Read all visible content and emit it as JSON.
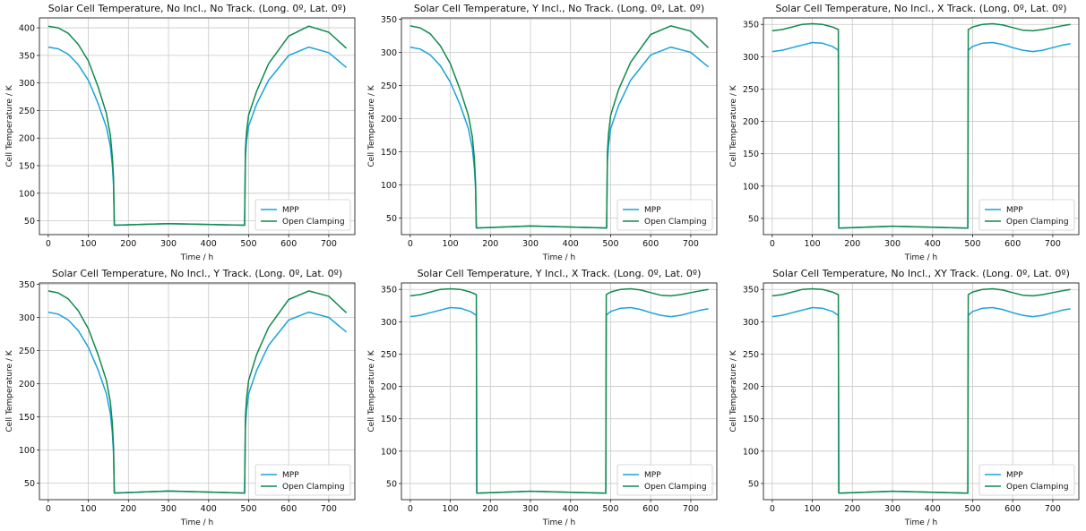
{
  "colors": {
    "mpp": "#1ba3d9",
    "open_clamping": "#108a4c",
    "grid": "#c8c8c8",
    "axes": "#222222"
  },
  "chart_data": [
    {
      "type": "line",
      "title": "Solar Cell Temperature, No Incl., No Track. (Long. 0º, Lat. 0º)",
      "xlabel": "Time / h",
      "ylabel": "Cell Temperature / K",
      "xlim": [
        -22,
        765
      ],
      "ylim": [
        25,
        418
      ],
      "xticks": [
        0,
        100,
        200,
        300,
        400,
        500,
        600,
        700
      ],
      "yticks": [
        50,
        100,
        150,
        200,
        250,
        300,
        350,
        400
      ],
      "grid": true,
      "legend": "bottom-right",
      "series": [
        {
          "name": "MPP",
          "x": [
            0,
            25,
            50,
            75,
            100,
            125,
            145,
            155,
            160,
            163,
            165,
            300,
            490,
            492,
            495,
            500,
            520,
            550,
            600,
            650,
            700,
            744
          ],
          "y": [
            365,
            362,
            352,
            333,
            305,
            262,
            220,
            185,
            150,
            115,
            42,
            45,
            42,
            165,
            195,
            222,
            262,
            305,
            350,
            365,
            355,
            328
          ]
        },
        {
          "name": "Open Clamping",
          "x": [
            0,
            25,
            50,
            75,
            100,
            125,
            145,
            155,
            160,
            163,
            165,
            300,
            490,
            492,
            495,
            500,
            520,
            550,
            600,
            650,
            700,
            744
          ],
          "y": [
            403,
            400,
            390,
            370,
            340,
            292,
            245,
            205,
            165,
            128,
            42,
            45,
            42,
            180,
            212,
            242,
            285,
            335,
            385,
            403,
            392,
            363
          ]
        }
      ]
    },
    {
      "type": "line",
      "title": "Solar Cell Temperature, Y Incl., No Track. (Long. 0º, Lat. 0º)",
      "xlabel": "Time / h",
      "ylabel": "Cell Temperature / K",
      "xlim": [
        -22,
        765
      ],
      "ylim": [
        25,
        352
      ],
      "xticks": [
        0,
        100,
        200,
        300,
        400,
        500,
        600,
        700
      ],
      "yticks": [
        50,
        100,
        150,
        200,
        250,
        300,
        350
      ],
      "grid": true,
      "legend": "bottom-right",
      "series": [
        {
          "name": "MPP",
          "x": [
            0,
            25,
            50,
            75,
            100,
            125,
            145,
            155,
            160,
            163,
            165,
            300,
            490,
            492,
            495,
            500,
            520,
            550,
            600,
            650,
            700,
            744
          ],
          "y": [
            308,
            305,
            296,
            280,
            255,
            220,
            185,
            155,
            125,
            95,
            35,
            38,
            35,
            135,
            160,
            185,
            220,
            258,
            296,
            308,
            300,
            278
          ]
        },
        {
          "name": "Open Clamping",
          "x": [
            0,
            25,
            50,
            75,
            100,
            125,
            145,
            155,
            160,
            163,
            165,
            300,
            490,
            492,
            495,
            500,
            520,
            550,
            600,
            650,
            700,
            744
          ],
          "y": [
            340,
            337,
            328,
            310,
            283,
            243,
            205,
            172,
            140,
            105,
            35,
            38,
            35,
            150,
            178,
            205,
            244,
            285,
            327,
            340,
            332,
            307
          ]
        }
      ]
    },
    {
      "type": "line",
      "title": "Solar Cell Temperature, No Incl., X Track. (Long. 0º, Lat. 0º)",
      "xlabel": "Time / h",
      "ylabel": "Cell Temperature / K",
      "xlim": [
        -22,
        765
      ],
      "ylim": [
        25,
        360
      ],
      "xticks": [
        0,
        100,
        200,
        300,
        400,
        500,
        600,
        700
      ],
      "yticks": [
        50,
        100,
        150,
        200,
        250,
        300,
        350
      ],
      "grid": true,
      "legend": "bottom-right",
      "series": [
        {
          "name": "MPP",
          "x": [
            0,
            25,
            50,
            75,
            100,
            125,
            150,
            165,
            166,
            300,
            488,
            489,
            500,
            525,
            550,
            575,
            600,
            625,
            650,
            675,
            700,
            725,
            744
          ],
          "y": [
            308,
            310,
            314,
            318,
            322,
            321,
            316,
            310,
            35,
            38,
            35,
            310,
            316,
            321,
            322,
            319,
            314,
            310,
            308,
            310,
            314,
            318,
            320
          ]
        },
        {
          "name": "Open Clamping",
          "x": [
            0,
            25,
            50,
            75,
            100,
            125,
            150,
            165,
            166,
            300,
            488,
            489,
            500,
            525,
            550,
            575,
            600,
            625,
            650,
            675,
            700,
            725,
            744
          ],
          "y": [
            340,
            342,
            346,
            350,
            351,
            350,
            346,
            342,
            35,
            38,
            35,
            342,
            346,
            350,
            351,
            349,
            345,
            341,
            340,
            342,
            345,
            348,
            350
          ]
        }
      ]
    },
    {
      "type": "line",
      "title": "Solar Cell Temperature, No Incl., Y Track. (Long. 0º, Lat. 0º)",
      "xlabel": "Time / h",
      "ylabel": "Cell Temperature / K",
      "xlim": [
        -22,
        765
      ],
      "ylim": [
        25,
        352
      ],
      "xticks": [
        0,
        100,
        200,
        300,
        400,
        500,
        600,
        700
      ],
      "yticks": [
        50,
        100,
        150,
        200,
        250,
        300,
        350
      ],
      "grid": true,
      "legend": "bottom-right",
      "series": [
        {
          "name": "MPP",
          "x": [
            0,
            25,
            50,
            75,
            100,
            125,
            145,
            155,
            160,
            163,
            165,
            300,
            490,
            492,
            495,
            500,
            520,
            550,
            600,
            650,
            700,
            744
          ],
          "y": [
            308,
            305,
            296,
            280,
            255,
            220,
            185,
            155,
            125,
            95,
            35,
            38,
            35,
            135,
            160,
            185,
            220,
            258,
            296,
            308,
            300,
            278
          ]
        },
        {
          "name": "Open Clamping",
          "x": [
            0,
            25,
            50,
            75,
            100,
            125,
            145,
            155,
            160,
            163,
            165,
            300,
            490,
            492,
            495,
            500,
            520,
            550,
            600,
            650,
            700,
            744
          ],
          "y": [
            340,
            337,
            328,
            310,
            283,
            243,
            205,
            172,
            140,
            105,
            35,
            38,
            35,
            150,
            178,
            205,
            244,
            285,
            327,
            340,
            332,
            307
          ]
        }
      ]
    },
    {
      "type": "line",
      "title": "Solar Cell Temperature, Y Incl., X Track. (Long. 0º, Lat. 0º)",
      "xlabel": "Time / h",
      "ylabel": "Cell Temperature / K",
      "xlim": [
        -22,
        765
      ],
      "ylim": [
        25,
        360
      ],
      "xticks": [
        0,
        100,
        200,
        300,
        400,
        500,
        600,
        700
      ],
      "yticks": [
        50,
        100,
        150,
        200,
        250,
        300,
        350
      ],
      "grid": true,
      "legend": "bottom-right",
      "series": [
        {
          "name": "MPP",
          "x": [
            0,
            25,
            50,
            75,
            100,
            125,
            150,
            165,
            166,
            300,
            488,
            489,
            500,
            525,
            550,
            575,
            600,
            625,
            650,
            675,
            700,
            725,
            744
          ],
          "y": [
            308,
            310,
            314,
            318,
            322,
            321,
            316,
            310,
            35,
            38,
            35,
            310,
            316,
            321,
            322,
            319,
            314,
            310,
            308,
            310,
            314,
            318,
            320
          ]
        },
        {
          "name": "Open Clamping",
          "x": [
            0,
            25,
            50,
            75,
            100,
            125,
            150,
            165,
            166,
            300,
            488,
            489,
            500,
            525,
            550,
            575,
            600,
            625,
            650,
            675,
            700,
            725,
            744
          ],
          "y": [
            340,
            342,
            346,
            350,
            351,
            350,
            346,
            342,
            35,
            38,
            35,
            342,
            346,
            350,
            351,
            349,
            345,
            341,
            340,
            342,
            345,
            348,
            350
          ]
        }
      ]
    },
    {
      "type": "line",
      "title": "Solar Cell Temperature, No Incl., XY Track. (Long. 0º, Lat. 0º)",
      "xlabel": "Time / h",
      "ylabel": "Cell Temperature / K",
      "xlim": [
        -22,
        765
      ],
      "ylim": [
        25,
        360
      ],
      "xticks": [
        0,
        100,
        200,
        300,
        400,
        500,
        600,
        700
      ],
      "yticks": [
        50,
        100,
        150,
        200,
        250,
        300,
        350
      ],
      "grid": true,
      "legend": "bottom-right",
      "series": [
        {
          "name": "MPP",
          "x": [
            0,
            25,
            50,
            75,
            100,
            125,
            150,
            165,
            166,
            300,
            488,
            489,
            500,
            525,
            550,
            575,
            600,
            625,
            650,
            675,
            700,
            725,
            744
          ],
          "y": [
            308,
            310,
            314,
            318,
            322,
            321,
            316,
            310,
            35,
            38,
            35,
            310,
            316,
            321,
            322,
            319,
            314,
            310,
            308,
            310,
            314,
            318,
            320
          ]
        },
        {
          "name": "Open Clamping",
          "x": [
            0,
            25,
            50,
            75,
            100,
            125,
            150,
            165,
            166,
            300,
            488,
            489,
            500,
            525,
            550,
            575,
            600,
            625,
            650,
            675,
            700,
            725,
            744
          ],
          "y": [
            340,
            342,
            346,
            350,
            351,
            350,
            346,
            342,
            35,
            38,
            35,
            342,
            346,
            350,
            351,
            349,
            345,
            341,
            340,
            342,
            345,
            348,
            350
          ]
        }
      ]
    }
  ]
}
